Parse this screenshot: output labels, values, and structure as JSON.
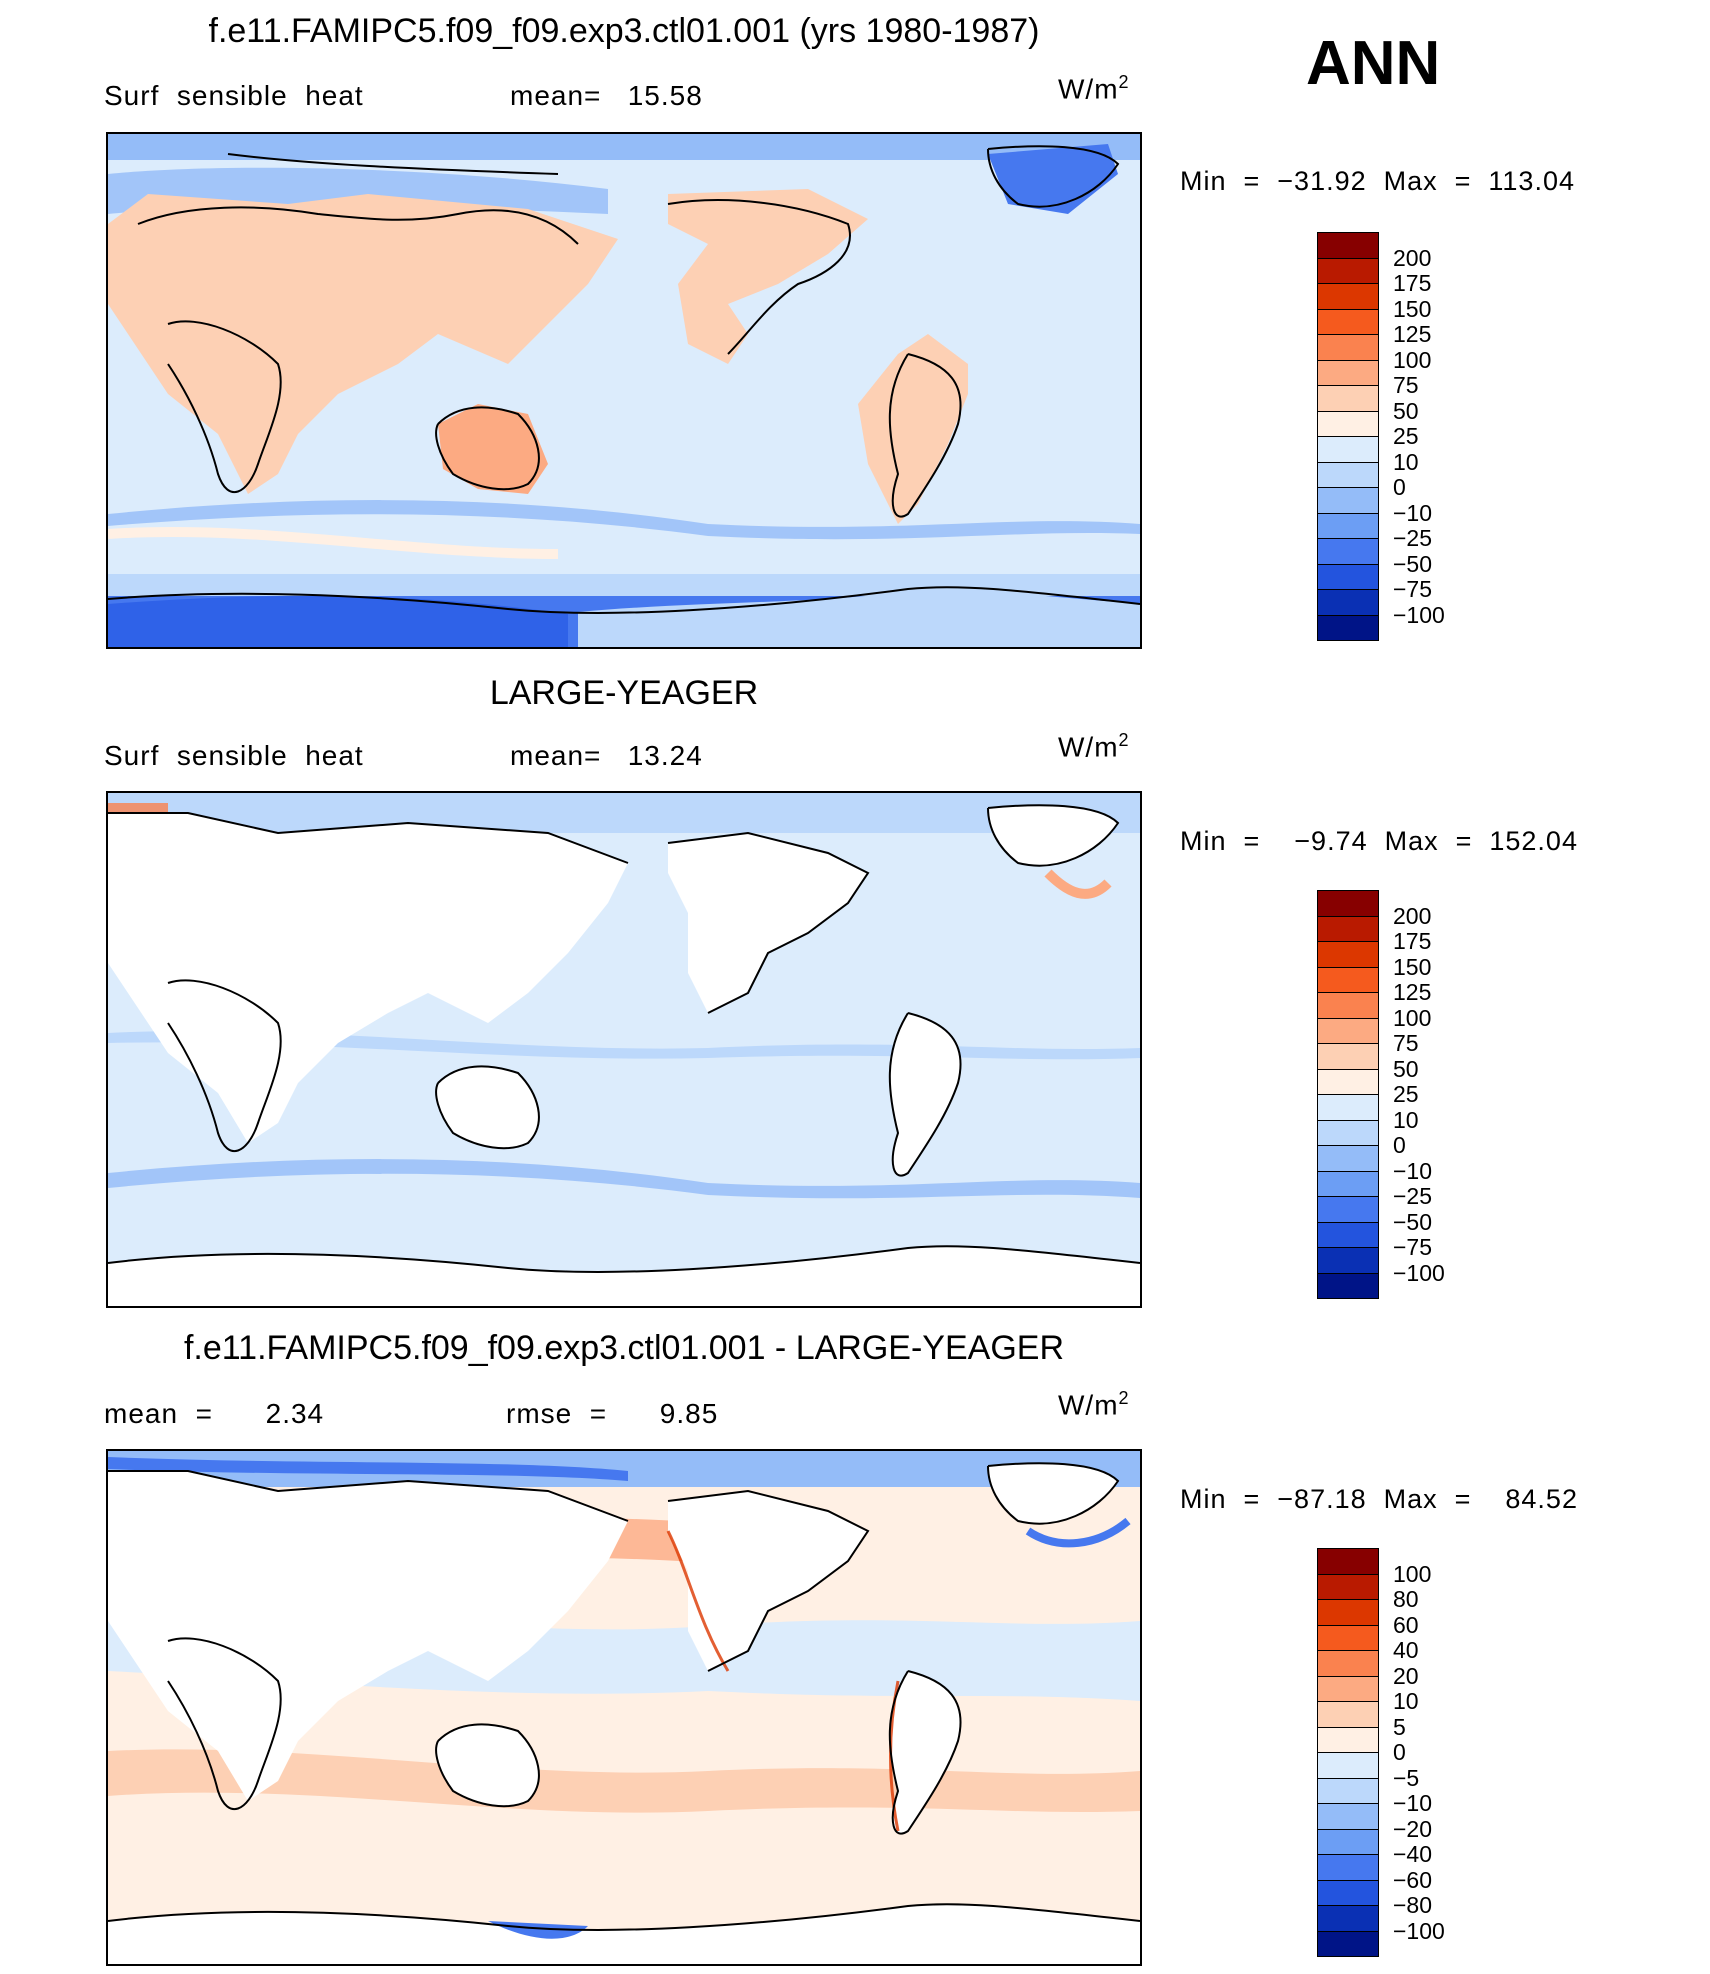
{
  "season": "ANN",
  "units_unit": "W/m",
  "units_exp": "2",
  "panels": [
    {
      "title": "f.e11.FAMIPC5.f09_f09.exp3.ctl01.001 (yrs 1980-1987)",
      "left_label": "Surf  sensible  heat",
      "mid_label": "mean=   15.58",
      "minmax": "Min  =  −31.92  Max  =  113.04",
      "colorbar_labels": [
        "200",
        "175",
        "150",
        "125",
        "100",
        "75",
        "50",
        "25",
        "10",
        "0",
        "−10",
        "−25",
        "−50",
        "−75",
        "−100"
      ],
      "colorbar_colors": [
        "#870000",
        "#b91a00",
        "#dc3700",
        "#f55a1e",
        "#fa824f",
        "#fcaa82",
        "#fdd0b4",
        "#fff0e4",
        "#dcecfc",
        "#bcd8fb",
        "#94bcf8",
        "#6c9ef4",
        "#4678ef",
        "#2354de",
        "#0a30b4",
        "#001487"
      ]
    },
    {
      "title": "LARGE-YEAGER",
      "left_label": "Surf  sensible  heat",
      "mid_label": "mean=   13.24",
      "minmax": "Min  =    −9.74  Max  =  152.04",
      "colorbar_labels": [
        "200",
        "175",
        "150",
        "125",
        "100",
        "75",
        "50",
        "25",
        "10",
        "0",
        "−10",
        "−25",
        "−50",
        "−75",
        "−100"
      ],
      "colorbar_colors": [
        "#870000",
        "#b91a00",
        "#dc3700",
        "#f55a1e",
        "#fa824f",
        "#fcaa82",
        "#fdd0b4",
        "#fff0e4",
        "#dcecfc",
        "#bcd8fb",
        "#94bcf8",
        "#6c9ef4",
        "#4678ef",
        "#2354de",
        "#0a30b4",
        "#001487"
      ]
    },
    {
      "title": "f.e11.FAMIPC5.f09_f09.exp3.ctl01.001 - LARGE-YEAGER",
      "left_label": "mean  =      2.34",
      "mid_label": "rmse  =      9.85",
      "minmax": "Min  =  −87.18  Max  =    84.52",
      "colorbar_labels": [
        "100",
        "80",
        "60",
        "40",
        "20",
        "10",
        "5",
        "0",
        "−5",
        "−10",
        "−20",
        "−40",
        "−60",
        "−80",
        "−100"
      ],
      "colorbar_colors": [
        "#870000",
        "#b91a00",
        "#dc3700",
        "#f55a1e",
        "#fa824f",
        "#fcaa82",
        "#fdd0b4",
        "#fff0e4",
        "#dcecfc",
        "#bcd8fb",
        "#94bcf8",
        "#6c9ef4",
        "#4678ef",
        "#2354de",
        "#0a30b4",
        "#001487"
      ]
    }
  ]
}
